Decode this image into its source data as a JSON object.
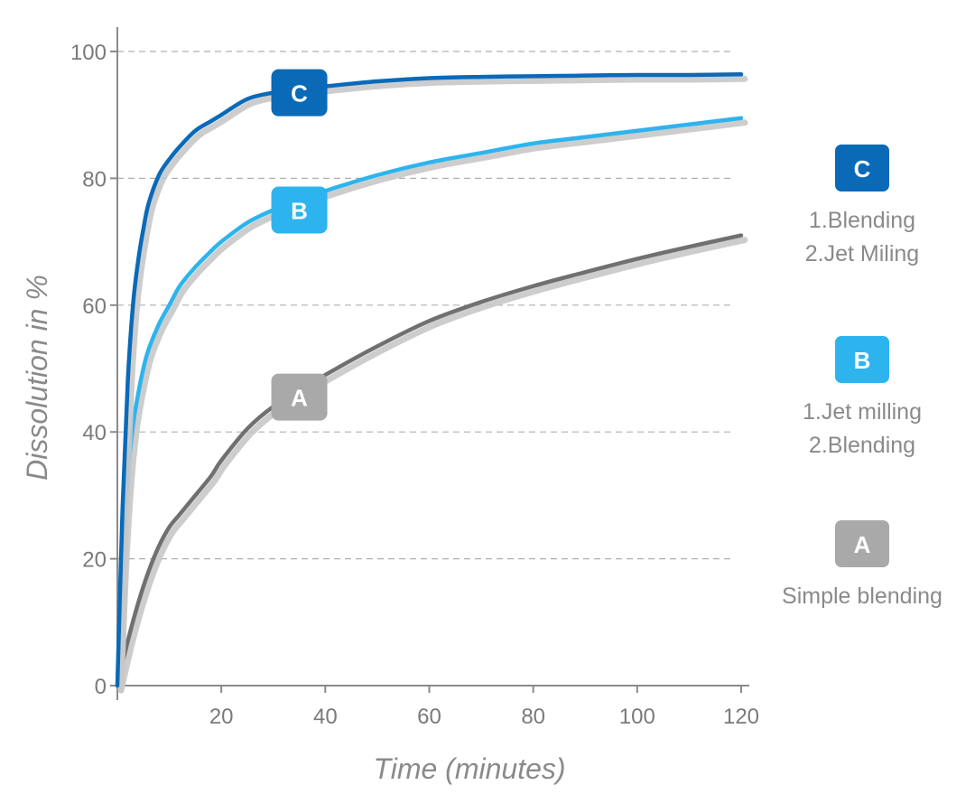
{
  "chart_data": {
    "type": "line",
    "title": "",
    "xlabel": "Time (minutes)",
    "ylabel": "Dissolution  in %",
    "xlim": [
      0,
      120
    ],
    "ylim": [
      0,
      100
    ],
    "x_ticks": [
      20,
      40,
      60,
      80,
      100,
      120
    ],
    "y_ticks": [
      0,
      20,
      40,
      60,
      80,
      100
    ],
    "grid": "horizontal dashed",
    "legend_placement": "right",
    "series": [
      {
        "name": "C",
        "color": "#0a6ab8",
        "x": [
          0,
          1,
          2,
          3,
          4,
          5,
          6,
          8,
          10,
          12,
          15,
          18,
          20,
          25,
          30,
          35,
          40,
          50,
          60,
          70,
          80,
          90,
          100,
          110,
          120
        ],
        "y": [
          0,
          28,
          48,
          60,
          67,
          72,
          76,
          80.5,
          83,
          85,
          87.5,
          89,
          90,
          92.5,
          93.5,
          94,
          94.5,
          95.3,
          95.8,
          96,
          96.1,
          96.2,
          96.3,
          96.3,
          96.4
        ]
      },
      {
        "name": "B",
        "color": "#2db4ef",
        "x": [
          0,
          1,
          2,
          3,
          4,
          5,
          6,
          8,
          10,
          12,
          15,
          18,
          20,
          25,
          30,
          35,
          40,
          50,
          60,
          70,
          80,
          90,
          100,
          110,
          120
        ],
        "y": [
          0,
          20,
          33,
          41,
          46,
          50,
          53,
          57,
          60,
          63,
          66,
          68.5,
          70,
          73,
          75,
          76.5,
          78,
          80.5,
          82.5,
          84,
          85.5,
          86.5,
          87.5,
          88.5,
          89.5
        ]
      },
      {
        "name": "A",
        "color": "#707070",
        "x": [
          0,
          2,
          4,
          6,
          8,
          10,
          12,
          15,
          18,
          20,
          25,
          30,
          35,
          40,
          50,
          60,
          70,
          80,
          90,
          100,
          110,
          120
        ],
        "y": [
          0,
          7,
          13,
          18,
          22,
          25,
          27,
          30,
          33,
          35.5,
          40.5,
          44,
          46.5,
          49,
          53.5,
          57.5,
          60.5,
          63,
          65.2,
          67.3,
          69.2,
          71
        ]
      }
    ],
    "curve_labels": [
      {
        "series": "C",
        "x": 35,
        "y": 93.5
      },
      {
        "series": "B",
        "x": 35,
        "y": 75
      },
      {
        "series": "A",
        "x": 35,
        "y": 45.5
      }
    ]
  },
  "legend": [
    {
      "badge": "C",
      "color": "#0a6ab8",
      "lines": [
        "1.Blending",
        "2.Jet Miling"
      ]
    },
    {
      "badge": "B",
      "color": "#2db4ef",
      "lines": [
        "1.Jet milling",
        "2.Blending"
      ]
    },
    {
      "badge": "A",
      "color": "#a9a9a9",
      "lines": [
        "Simple blending"
      ]
    }
  ],
  "colors": {
    "grid": "#b0b0b0",
    "axis": "#8a8a8a",
    "shadow": "#c8c8c8",
    "label_A_badge": "#a9a9a9"
  }
}
